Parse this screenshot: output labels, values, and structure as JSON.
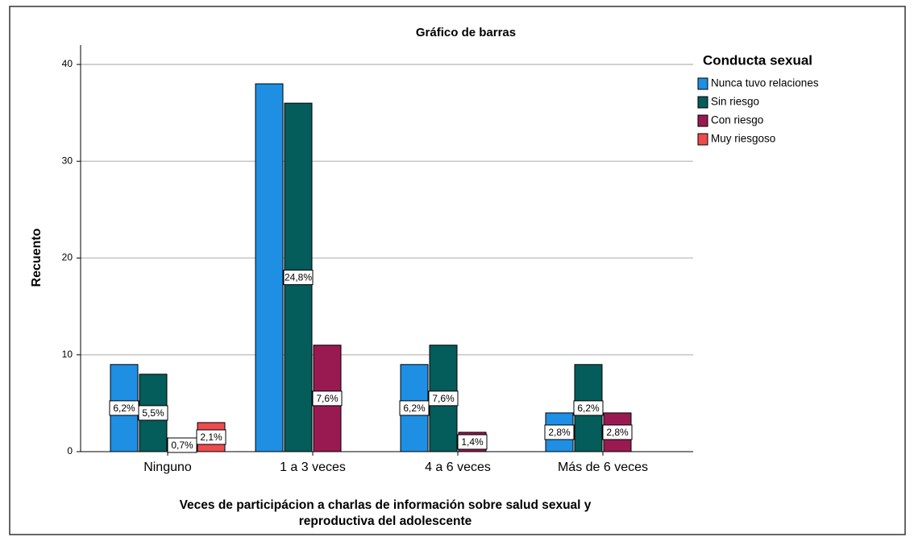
{
  "chart_data": {
    "type": "bar",
    "title": "Gráfico de barras",
    "ylabel": "Recuento",
    "xlabel": [
      "Veces de participácion a charlas de información sobre salud sexual y",
      "reproductiva del adolescente"
    ],
    "legend_title": "Conducta sexual",
    "legend": "right",
    "grid": true,
    "categories": [
      "Ninguno",
      "1 a 3 veces",
      "4 a 6 veces",
      "Más de 6 veces"
    ],
    "series": [
      {
        "name": "Nunca tuvo relaciones",
        "color": "#1e8fe3",
        "values": [
          9,
          38,
          9,
          4
        ],
        "data_labels": [
          "6,2%",
          null,
          "6,2%",
          "2,8%"
        ]
      },
      {
        "name": "Sin riesgo",
        "color": "#045c5b",
        "values": [
          8,
          36,
          11,
          9
        ],
        "data_labels": [
          "5,5%",
          "24,8%",
          "7,6%",
          "6,2%"
        ]
      },
      {
        "name": "Con riesgo",
        "color": "#981a50",
        "values": [
          1,
          11,
          2,
          4
        ],
        "data_labels": [
          "0,7%",
          "7,6%",
          "1,4%",
          "2,8%"
        ]
      },
      {
        "name": "Muy riesgoso",
        "color": "#ee4b4f",
        "values": [
          3,
          null,
          null,
          null
        ],
        "data_labels": [
          "2,1%",
          null,
          null,
          null
        ]
      }
    ],
    "ylim": [
      0,
      42
    ],
    "yticks": [
      0,
      10,
      20,
      30,
      40
    ]
  }
}
